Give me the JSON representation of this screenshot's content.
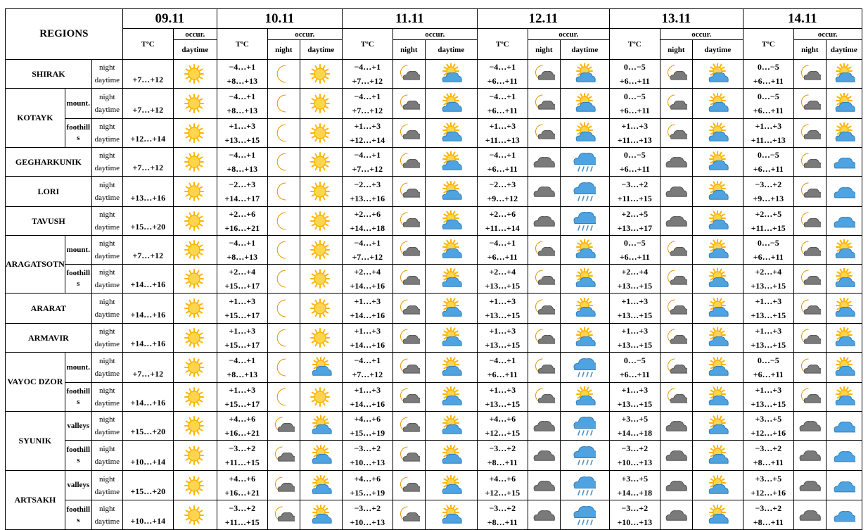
{
  "header": {
    "regions_label": "REGIONS",
    "temp_label": "TºC",
    "occur_label": "occur.",
    "night_label": "night",
    "day_label": "daytime",
    "dates": [
      "09.11",
      "10.11",
      "11.11",
      "12.11",
      "13.11",
      "14.11"
    ]
  },
  "row_labels": {
    "night": "night",
    "day": "daytime"
  },
  "rows": [
    {
      "region": "SHIRAK",
      "span": 1,
      "sub": "",
      "d9": [
        "+7…+12",
        "sun"
      ],
      "days": [
        {
          "n": "−4…+1",
          "d": "+8…+13",
          "in": "moon",
          "id": "sun"
        },
        {
          "n": "−4…+1",
          "d": "+7…+12",
          "in": "moon-cloud",
          "id": "sun-cloud"
        },
        {
          "n": "−4…+1",
          "d": "+6…+11",
          "in": "moon-cloud",
          "id": "sun-cloud"
        },
        {
          "n": "0…−5",
          "d": "+6…+11",
          "in": "moon-cloud",
          "id": "sun-cloud"
        },
        {
          "n": "0…−5",
          "d": "+6…+11",
          "in": "moon-cloud",
          "id": "sun-cloud"
        }
      ]
    },
    {
      "region": "KOTAYK",
      "span": 2,
      "sub": "mount.",
      "d9": [
        "+7…+12",
        "sun"
      ],
      "days": [
        {
          "n": "−4…+1",
          "d": "+8…+13",
          "in": "moon",
          "id": "sun"
        },
        {
          "n": "−4…+1",
          "d": "+7…+12",
          "in": "moon-cloud",
          "id": "sun-cloud"
        },
        {
          "n": "−4…+1",
          "d": "+6…+11",
          "in": "moon-cloud",
          "id": "sun-cloud"
        },
        {
          "n": "0…−5",
          "d": "+6…+11",
          "in": "moon-cloud",
          "id": "sun-cloud"
        },
        {
          "n": "0…−5",
          "d": "+6…+11",
          "in": "moon-cloud",
          "id": "sun-cloud"
        }
      ]
    },
    {
      "region": "",
      "span": 0,
      "sub": "foothills",
      "d9": [
        "+12…+14",
        "sun"
      ],
      "days": [
        {
          "n": "+1…+3",
          "d": "+13…+15",
          "in": "moon",
          "id": "sun"
        },
        {
          "n": "+1…+3",
          "d": "+12…+14",
          "in": "moon-cloud",
          "id": "sun-cloud"
        },
        {
          "n": "+1…+3",
          "d": "+11…+13",
          "in": "moon-cloud",
          "id": "sun-cloud"
        },
        {
          "n": "+1…+3",
          "d": "+11…+13",
          "in": "moon-cloud",
          "id": "sun-cloud"
        },
        {
          "n": "+1…+3",
          "d": "+11…+13",
          "in": "moon-cloud",
          "id": "sun-cloud"
        }
      ]
    },
    {
      "region": "GEGHARKUNIK",
      "span": 1,
      "sub": "",
      "d9": [
        "+7…+12",
        "sun"
      ],
      "days": [
        {
          "n": "−4…+1",
          "d": "+8…+13",
          "in": "moon",
          "id": "sun"
        },
        {
          "n": "−4…+1",
          "d": "+7…+12",
          "in": "moon-cloud",
          "id": "sun-cloud"
        },
        {
          "n": "−4…+1",
          "d": "+6…+11",
          "in": "cloud",
          "id": "rain"
        },
        {
          "n": "0…−5",
          "d": "+6…+11",
          "in": "cloud",
          "id": "sun-cloud"
        },
        {
          "n": "0…−5",
          "d": "+6…+11",
          "in": "moon-cloud",
          "id": "cloud-blue"
        }
      ]
    },
    {
      "region": "LORI",
      "span": 1,
      "sub": "",
      "d9": [
        "+13…+16",
        "sun"
      ],
      "days": [
        {
          "n": "−2…+3",
          "d": "+14…+17",
          "in": "moon",
          "id": "sun"
        },
        {
          "n": "−2…+3",
          "d": "+13…+16",
          "in": "moon-cloud",
          "id": "sun-cloud"
        },
        {
          "n": "−2…+3",
          "d": "+9…+12",
          "in": "cloud",
          "id": "rain"
        },
        {
          "n": "−3…+2",
          "d": "+11…+15",
          "in": "cloud",
          "id": "sun-cloud"
        },
        {
          "n": "−3…+2",
          "d": "+9…+13",
          "in": "moon-cloud",
          "id": "cloud-blue"
        }
      ]
    },
    {
      "region": "TAVUSH",
      "span": 1,
      "sub": "",
      "d9": [
        "+15…+20",
        "sun"
      ],
      "days": [
        {
          "n": "+2…+6",
          "d": "+16…+21",
          "in": "moon",
          "id": "sun"
        },
        {
          "n": "+2…+6",
          "d": "+14…+18",
          "in": "moon-cloud",
          "id": "sun-cloud"
        },
        {
          "n": "+2…+6",
          "d": "+11…+14",
          "in": "cloud",
          "id": "rain"
        },
        {
          "n": "+2…+5",
          "d": "+13…+17",
          "in": "cloud",
          "id": "sun-cloud"
        },
        {
          "n": "+2…+5",
          "d": "+11…+15",
          "in": "moon-cloud",
          "id": "cloud-blue"
        }
      ]
    },
    {
      "region": "ARAGATSOTN",
      "span": 2,
      "sub": "mount.",
      "d9": [
        "+7…+12",
        "sun"
      ],
      "days": [
        {
          "n": "−4…+1",
          "d": "+8…+13",
          "in": "moon",
          "id": "sun"
        },
        {
          "n": "−4…+1",
          "d": "+7…+12",
          "in": "moon-cloud",
          "id": "sun-cloud"
        },
        {
          "n": "−4…+1",
          "d": "+6…+11",
          "in": "moon-cloud",
          "id": "sun-cloud"
        },
        {
          "n": "0…−5",
          "d": "+6…+11",
          "in": "moon-cloud",
          "id": "sun-cloud"
        },
        {
          "n": "0…−5",
          "d": "+6…+11",
          "in": "moon-cloud",
          "id": "sun-cloud"
        }
      ]
    },
    {
      "region": "",
      "span": 0,
      "sub": "foothills",
      "d9": [
        "+14…+16",
        "sun"
      ],
      "days": [
        {
          "n": "+2…+4",
          "d": "+15…+17",
          "in": "moon",
          "id": "sun"
        },
        {
          "n": "+2…+4",
          "d": "+14…+16",
          "in": "moon-cloud",
          "id": "sun-cloud"
        },
        {
          "n": "+2…+4",
          "d": "+13…+15",
          "in": "moon-cloud",
          "id": "sun-cloud"
        },
        {
          "n": "+2…+4",
          "d": "+13…+15",
          "in": "moon-cloud",
          "id": "sun-cloud"
        },
        {
          "n": "+2…+4",
          "d": "+13…+15",
          "in": "moon-cloud",
          "id": "sun-cloud"
        }
      ]
    },
    {
      "region": "ARARAT",
      "span": 1,
      "sub": "",
      "d9": [
        "+14…+16",
        "sun"
      ],
      "days": [
        {
          "n": "+1…+3",
          "d": "+15…+17",
          "in": "moon",
          "id": "sun"
        },
        {
          "n": "+1…+3",
          "d": "+14…+16",
          "in": "moon-cloud",
          "id": "sun-cloud"
        },
        {
          "n": "+1…+3",
          "d": "+13…+15",
          "in": "moon-cloud",
          "id": "sun-cloud"
        },
        {
          "n": "+1…+3",
          "d": "+13…+15",
          "in": "moon-cloud",
          "id": "sun-cloud"
        },
        {
          "n": "+1…+3",
          "d": "+13…+15",
          "in": "moon-cloud",
          "id": "sun-cloud"
        }
      ]
    },
    {
      "region": "ARMAVIR",
      "span": 1,
      "sub": "",
      "d9": [
        "+14…+16",
        "sun"
      ],
      "days": [
        {
          "n": "+1…+3",
          "d": "+15…+17",
          "in": "moon",
          "id": "sun"
        },
        {
          "n": "+1…+3",
          "d": "+14…+16",
          "in": "moon-cloud",
          "id": "sun-cloud"
        },
        {
          "n": "+1…+3",
          "d": "+13…+15",
          "in": "moon-cloud",
          "id": "sun-cloud"
        },
        {
          "n": "+1…+3",
          "d": "+13…+15",
          "in": "moon-cloud",
          "id": "sun-cloud"
        },
        {
          "n": "+1…+3",
          "d": "+13…+15",
          "in": "moon-cloud",
          "id": "sun-cloud"
        }
      ]
    },
    {
      "region": "VAYOC DZOR",
      "span": 2,
      "sub": "mount.",
      "d9": [
        "+7…+12",
        "sun"
      ],
      "days": [
        {
          "n": "−4…+1",
          "d": "+8…+13",
          "in": "moon",
          "id": "sun-cloud"
        },
        {
          "n": "−4…+1",
          "d": "+7…+12",
          "in": "moon-cloud",
          "id": "sun-cloud"
        },
        {
          "n": "−4…+1",
          "d": "+6…+11",
          "in": "moon-cloud",
          "id": "rain"
        },
        {
          "n": "0…−5",
          "d": "+6…+11",
          "in": "moon-cloud",
          "id": "sun-cloud"
        },
        {
          "n": "0…−5",
          "d": "+6…+11",
          "in": "moon-cloud",
          "id": "sun-cloud"
        }
      ]
    },
    {
      "region": "",
      "span": 0,
      "sub": "foothills",
      "d9": [
        "+14…+16",
        "sun"
      ],
      "days": [
        {
          "n": "+1…+3",
          "d": "+15…+17",
          "in": "moon",
          "id": "sun"
        },
        {
          "n": "+1…+3",
          "d": "+14…+16",
          "in": "moon-cloud",
          "id": "sun-cloud"
        },
        {
          "n": "+1…+3",
          "d": "+13…+15",
          "in": "moon-cloud",
          "id": "sun-cloud"
        },
        {
          "n": "+1…+3",
          "d": "+13…+15",
          "in": "moon-cloud",
          "id": "sun-cloud"
        },
        {
          "n": "+1…+3",
          "d": "+13…+15",
          "in": "moon-cloud",
          "id": "sun-cloud"
        }
      ]
    },
    {
      "region": "SYUNIK",
      "span": 2,
      "sub": "valleys",
      "d9": [
        "+15…+20",
        "sun"
      ],
      "days": [
        {
          "n": "+4…+6",
          "d": "+16…+21",
          "in": "moon-cloud",
          "id": "sun-cloud"
        },
        {
          "n": "+4…+6",
          "d": "+15…+19",
          "in": "moon-cloud",
          "id": "sun-cloud"
        },
        {
          "n": "+4…+6",
          "d": "+12…+15",
          "in": "cloud",
          "id": "rain"
        },
        {
          "n": "+3…+5",
          "d": "+14…+18",
          "in": "cloud",
          "id": "sun-cloud"
        },
        {
          "n": "+3…+5",
          "d": "+12…+16",
          "in": "cloud",
          "id": "cloud-blue"
        }
      ]
    },
    {
      "region": "",
      "span": 0,
      "sub": "foothills",
      "d9": [
        "+10…+14",
        "sun"
      ],
      "days": [
        {
          "n": "−3…+2",
          "d": "+11…+15",
          "in": "moon-cloud",
          "id": "sun-cloud"
        },
        {
          "n": "−3…+2",
          "d": "+10…+13",
          "in": "moon-cloud",
          "id": "sun-cloud"
        },
        {
          "n": "−3…+2",
          "d": "+8…+11",
          "in": "cloud",
          "id": "rain"
        },
        {
          "n": "−3…+2",
          "d": "+10…+13",
          "in": "cloud",
          "id": "sun-cloud"
        },
        {
          "n": "−3…+2",
          "d": "+8…+11",
          "in": "cloud",
          "id": "cloud-blue"
        }
      ]
    },
    {
      "region": "ARTSAKH",
      "span": 2,
      "sub": "valleys",
      "d9": [
        "+15…+20",
        "sun"
      ],
      "days": [
        {
          "n": "+4…+6",
          "d": "+16…+21",
          "in": "moon-cloud",
          "id": "sun-cloud"
        },
        {
          "n": "+4…+6",
          "d": "+15…+19",
          "in": "moon-cloud",
          "id": "sun-cloud"
        },
        {
          "n": "+4…+6",
          "d": "+12…+15",
          "in": "cloud",
          "id": "rain"
        },
        {
          "n": "+3…+5",
          "d": "+14…+18",
          "in": "cloud",
          "id": "sun-cloud"
        },
        {
          "n": "+3…+5",
          "d": "+12…+16",
          "in": "cloud",
          "id": "cloud-blue"
        }
      ]
    },
    {
      "region": "",
      "span": 0,
      "sub": "foothills",
      "d9": [
        "+10…+14",
        "sun"
      ],
      "days": [
        {
          "n": "−3…+2",
          "d": "+11…+15",
          "in": "moon-cloud",
          "id": "sun-cloud"
        },
        {
          "n": "−3…+2",
          "d": "+10…+13",
          "in": "moon-cloud",
          "id": "sun-cloud"
        },
        {
          "n": "−3…+2",
          "d": "+8…+11",
          "in": "cloud",
          "id": "rain"
        },
        {
          "n": "−3…+2",
          "d": "+10…+13",
          "in": "cloud",
          "id": "sun-cloud"
        },
        {
          "n": "−3…+2",
          "d": "+8…+11",
          "in": "cloud",
          "id": "cloud-blue"
        }
      ]
    }
  ],
  "colors": {
    "sun": "#ffb300",
    "sun_core": "#ffd54f",
    "moon": "#ffc107",
    "cloud": "#7a7a7a",
    "cloud_blue": "#4fa3e0",
    "rain": "#4a90c8",
    "border": "#000000"
  }
}
